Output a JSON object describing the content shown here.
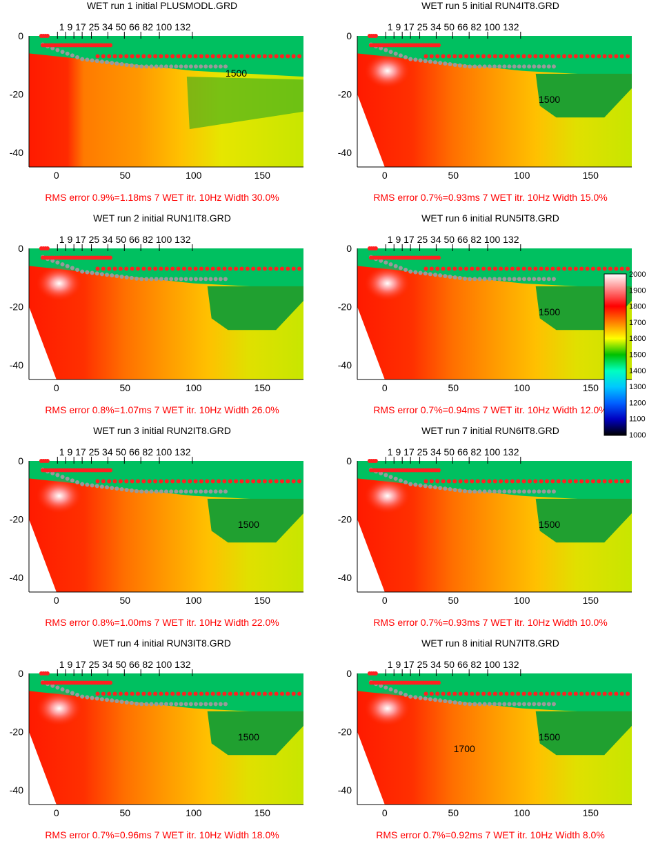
{
  "chart_data": [
    {
      "type": "heatmap",
      "title": "WET run 1 initial PLUSMODL.GRD",
      "footer": "RMS error 0.9%=1.18ms 7 WET itr. 10Hz Width 30.0%",
      "contour_labels": [
        "1500"
      ],
      "variant": "initial"
    },
    {
      "type": "heatmap",
      "title": "WET run 5 initial RUN4IT8.GRD",
      "footer": "RMS error 0.7%=0.93ms 7 WET itr. 10Hz Width 15.0%",
      "contour_labels": [
        "1500"
      ],
      "variant": "deep"
    },
    {
      "type": "heatmap",
      "title": "WET run 2 initial RUN1IT8.GRD",
      "footer": "RMS error 0.8%=1.07ms 7 WET itr. 10Hz Width 26.0%",
      "contour_labels": [],
      "variant": "mid"
    },
    {
      "type": "heatmap",
      "title": "WET run 6 initial RUN5IT8.GRD",
      "footer": "RMS error 0.7%=0.94ms 7 WET itr. 10Hz Width 12.0%",
      "contour_labels": [
        "1500"
      ],
      "variant": "deep"
    },
    {
      "type": "heatmap",
      "title": "WET run 3 initial RUN2IT8.GRD",
      "footer": "RMS error 0.8%=1.00ms 7 WET itr. 10Hz Width 22.0%",
      "contour_labels": [
        "1500"
      ],
      "variant": "mid"
    },
    {
      "type": "heatmap",
      "title": "WET run 7 initial RUN6IT8.GRD",
      "footer": "RMS error 0.7%=0.93ms 7 WET itr. 10Hz Width 10.0%",
      "contour_labels": [
        "1500"
      ],
      "variant": "deep"
    },
    {
      "type": "heatmap",
      "title": "WET run 4 initial RUN3IT8.GRD",
      "footer": "RMS error 0.7%=0.96ms 7 WET itr. 10Hz Width 18.0%",
      "contour_labels": [
        "1500"
      ],
      "variant": "mid"
    },
    {
      "type": "heatmap",
      "title": "WET run 8 initial RUN7IT8.GRD",
      "footer": "RMS error 0.7%=0.92ms 7 WET itr. 10Hz Width 8.0%",
      "contour_labels": [
        "1500",
        "1700"
      ],
      "variant": "final"
    }
  ],
  "axes": {
    "xlim": [
      -20,
      180
    ],
    "ylim": [
      -45,
      0
    ],
    "x_ticks": [
      0,
      50,
      100,
      150
    ],
    "y_ticks": [
      0,
      -20,
      -40
    ],
    "top_ticks": [
      1,
      9,
      17,
      25,
      34,
      50,
      66,
      82,
      100,
      132
    ],
    "top_tick_text": "1 9 17 25 34 50 66 82 100   132"
  },
  "colorbar": {
    "values": [
      2000,
      1900,
      1800,
      1700,
      1600,
      1500,
      1400,
      1300,
      1200,
      1100,
      1000
    ],
    "labels": [
      "2000",
      "1900",
      "1800",
      "1700",
      "1600",
      "1500",
      "1400",
      "1300",
      "1200",
      "1100",
      "1000"
    ]
  },
  "colors": {
    "red_marker": "#ff2020",
    "gray_marker": "#9a9a9a",
    "green": "#00c060",
    "error_text": "#ff0000"
  }
}
